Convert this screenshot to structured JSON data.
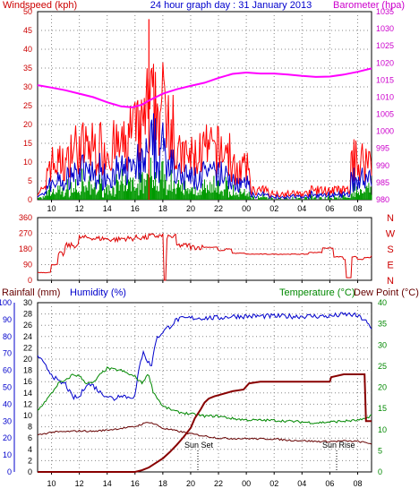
{
  "header": {
    "left": "Windspeed (kph)",
    "center": "24 hour graph day : 31 January 2013",
    "right": "Barometer (hpa)"
  },
  "bottom_header": {
    "rainfall": "Rainfall (mm)",
    "humidity": "Humidity (%)",
    "temperature": "Temperature (°C)",
    "dewpoint": "Dew Point (°C)"
  },
  "annotations": {
    "sunset": "Sun Set",
    "sunrise": "Sun Rise"
  },
  "colors": {
    "wind_max": "#ff0000",
    "wind_avg": "#0000cc",
    "wind_min": "#009900",
    "barometer": "#ff00ff",
    "direction": "#dd0000",
    "humidity": "#0000cc",
    "temperature": "#008800",
    "dewpoint": "#660000",
    "rainfall": "#880000",
    "axis_left": "#cc0000",
    "axis_right": "#cc00cc",
    "axis_blue": "#0000cc",
    "axis_green": "#008800"
  },
  "chart_data": [
    {
      "type": "line",
      "name": "wind-barometer",
      "x_ticks": [
        "10",
        "12",
        "14",
        "16",
        "18",
        "20",
        "22",
        "00",
        "02",
        "04",
        "06",
        "08"
      ],
      "y_left": {
        "label": "Windspeed (kph)",
        "range": [
          0,
          50
        ],
        "ticks": [
          "0",
          "5",
          "10",
          "15",
          "20",
          "25",
          "30",
          "35",
          "40",
          "45",
          "50"
        ]
      },
      "y_right": {
        "label": "Barometer (hpa)",
        "range": [
          980,
          1035
        ],
        "ticks": [
          "980",
          "985",
          "990",
          "995",
          "1000",
          "1005",
          "1010",
          "1015",
          "1020",
          "1025",
          "1030",
          "1035"
        ]
      },
      "barometer_series": {
        "x": [
          9.0,
          10.0,
          11.0,
          12.0,
          13.0,
          14.0,
          15.0,
          15.8,
          16.5,
          17.0,
          17.5,
          18.0,
          19.0,
          20.0,
          21.0,
          22.0,
          23.0,
          24.0,
          25.0,
          26.0,
          27.0,
          28.0,
          29.0,
          30.0,
          31.0,
          32.0,
          33.0
        ],
        "y": [
          1013.5,
          1012.8,
          1012.0,
          1011.0,
          1010.0,
          1008.5,
          1007.3,
          1007.0,
          1007.8,
          1009.0,
          1010.0,
          1011.0,
          1012.3,
          1013.3,
          1014.2,
          1015.6,
          1016.8,
          1017.2,
          1016.9,
          1016.9,
          1016.6,
          1016.2,
          1015.9,
          1016.0,
          1016.6,
          1017.4,
          1018.4
        ]
      },
      "gust_peak": {
        "x": 17.0,
        "y": 48
      }
    },
    {
      "type": "line",
      "name": "wind-direction",
      "y_left": {
        "range": [
          0,
          360
        ],
        "ticks": [
          "0",
          "90",
          "180",
          "270",
          "360"
        ]
      },
      "y_right_ticks": [
        "N",
        "E",
        "S",
        "W",
        "N"
      ],
      "series": {
        "x": [
          9.0,
          9.6,
          10.0,
          10.5,
          11.0,
          12.0,
          13.0,
          14.0,
          15.0,
          16.0,
          17.0,
          18.0,
          18.1,
          18.3,
          19.0,
          20.0,
          21.0,
          22.0,
          22.5,
          23.0,
          24.0,
          26.0,
          27.0,
          28.5,
          29.5,
          29.9,
          30.3,
          31.0,
          31.2,
          31.6,
          32.0,
          32.5,
          33.0
        ],
        "y": [
          45,
          45,
          90,
          150,
          200,
          245,
          240,
          235,
          240,
          245,
          255,
          260,
          0,
          250,
          200,
          190,
          190,
          170,
          180,
          155,
          150,
          150,
          150,
          160,
          185,
          185,
          135,
          120,
          15,
          135,
          120,
          130,
          140
        ]
      }
    },
    {
      "type": "line",
      "name": "humidity-temperature-rain",
      "x_ticks": [
        "10",
        "12",
        "14",
        "16",
        "18",
        "20",
        "22",
        "00",
        "02",
        "04",
        "06",
        "08"
      ],
      "y_humidity": {
        "label": "Humidity (%)",
        "range": [
          0,
          100
        ],
        "ticks": [
          "0",
          "10",
          "20",
          "30",
          "40",
          "50",
          "60",
          "70",
          "80",
          "90",
          "100"
        ]
      },
      "y_rain": {
        "label": "Rainfall (mm)",
        "range": [
          0,
          30
        ],
        "ticks": [
          "0",
          "2",
          "4",
          "6",
          "8",
          "10",
          "12",
          "14",
          "16",
          "18",
          "20",
          "22",
          "24",
          "26",
          "28",
          "30"
        ]
      },
      "y_temp": {
        "label": "Temperature (°C)",
        "range": [
          0,
          40
        ],
        "ticks": [
          "0",
          "5",
          "10",
          "15",
          "20",
          "25",
          "30",
          "35",
          "40"
        ]
      },
      "humidity": {
        "x": [
          9.0,
          9.5,
          10.0,
          10.5,
          11.0,
          11.5,
          12.0,
          12.5,
          13.0,
          13.5,
          14.0,
          14.5,
          15.0,
          15.5,
          16.0,
          16.3,
          16.6,
          16.9,
          17.2,
          17.5,
          18.0,
          18.5,
          19.0,
          20.0,
          21.0,
          22.0,
          23.0,
          24.0,
          25.0,
          26.0,
          27.0,
          28.0,
          29.0,
          30.0,
          31.0,
          31.5,
          32.0,
          32.5,
          33.0
        ],
        "y": [
          69,
          63,
          58,
          53,
          52,
          44,
          44,
          52,
          51,
          47,
          45,
          43,
          46,
          44,
          45,
          61,
          72,
          65,
          63,
          78,
          83,
          86,
          90,
          91,
          91,
          91,
          92,
          92,
          92,
          92,
          92,
          92,
          92,
          92,
          93,
          93,
          92,
          90,
          84
        ]
      },
      "temperature": {
        "x": [
          9.0,
          9.5,
          10.0,
          10.5,
          11.0,
          11.5,
          12.0,
          12.5,
          13.0,
          13.5,
          14.0,
          14.5,
          15.0,
          15.5,
          16.0,
          16.5,
          16.8,
          17.0,
          17.3,
          17.6,
          18.0,
          19.0,
          20.0,
          21.0,
          22.0,
          23.0,
          24.0,
          25.0,
          26.0,
          27.0,
          28.0,
          29.0,
          30.0,
          31.0,
          32.0,
          32.5,
          33.0
        ],
        "y": [
          14.5,
          16.5,
          18.5,
          21,
          21.5,
          23,
          22.7,
          21,
          21,
          23,
          24.5,
          24.2,
          24,
          23.2,
          22.5,
          21,
          22.5,
          23,
          19,
          17.5,
          15.5,
          14.2,
          13.7,
          13.2,
          13.2,
          12.6,
          12.3,
          12.2,
          12.2,
          12.0,
          11.8,
          11.6,
          11.8,
          12.0,
          12.2,
          12.4,
          13.5
        ]
      },
      "dewpoint": {
        "x": [
          9.0,
          10.0,
          11.0,
          12.0,
          13.0,
          14.0,
          15.0,
          16.0,
          16.5,
          17.0,
          17.5,
          18.0,
          19.0,
          20.0,
          21.0,
          22.0,
          23.0,
          24.0,
          25.0,
          26.0,
          27.0,
          28.0,
          29.0,
          30.0,
          31.0,
          32.0,
          33.0
        ],
        "y": [
          8.7,
          9.4,
          9.5,
          9.7,
          9.6,
          9.9,
          10.3,
          10.7,
          11.3,
          11.8,
          11.2,
          10.3,
          9.7,
          9.0,
          8.5,
          8.0,
          7.9,
          7.9,
          7.8,
          7.8,
          7.5,
          7.4,
          7.2,
          7.2,
          7.3,
          7.2,
          6.7
        ]
      },
      "rainfall": {
        "x": [
          9.0,
          16.0,
          16.5,
          17.0,
          17.5,
          18.0,
          18.5,
          19.0,
          19.5,
          20.0,
          20.3,
          20.7,
          21.0,
          21.3,
          21.7,
          22.0,
          23.0,
          23.8,
          24.2,
          25.0,
          26.0,
          27.0,
          28.0,
          29.0,
          30.0,
          30.1,
          31.0,
          32.5,
          32.6,
          33.0
        ],
        "y": [
          0,
          0,
          0.3,
          0.8,
          1.6,
          2.4,
          3.5,
          4.8,
          6.2,
          7.8,
          9.5,
          11,
          12.3,
          13.0,
          13.4,
          13.6,
          14.3,
          14.6,
          15.7,
          16.0,
          16.0,
          16.0,
          16.0,
          16.0,
          16.0,
          16.8,
          17.3,
          17.3,
          9.0,
          9.0
        ]
      }
    }
  ]
}
